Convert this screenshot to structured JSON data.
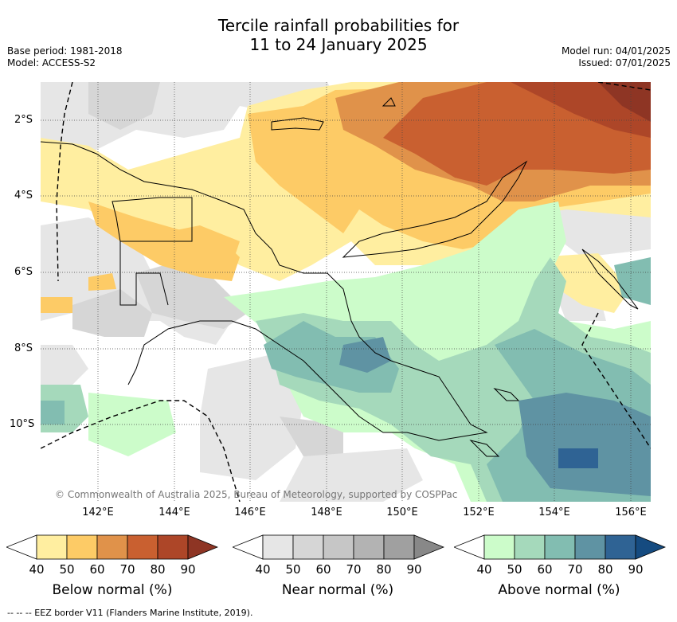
{
  "title_line1": "Tercile rainfall probabilities for",
  "title_line2": "11 to 24 January 2025",
  "meta": {
    "base_period": "Base period: 1981-2018",
    "model": "Model: ACCESS-S2",
    "model_run": "Model run: 04/01/2025",
    "issued": "Issued: 07/01/2025"
  },
  "map": {
    "lat_ticks": [
      "2°S",
      "4°S",
      "6°S",
      "8°S",
      "10°S"
    ],
    "lon_ticks": [
      "142°E",
      "144°E",
      "146°E",
      "148°E",
      "150°E",
      "152°E",
      "154°E",
      "156°E"
    ],
    "copyright": "© Commonwealth of Australia 2025, Bureau of Meteorology, supported by COSPPac"
  },
  "colorbars": [
    {
      "label": "Below normal (%)",
      "ticks": [
        "40",
        "50",
        "60",
        "70",
        "80",
        "90"
      ],
      "colors": [
        "#ffeea0",
        "#fdcb66",
        "#e0924a",
        "#c96030",
        "#ad4628",
        "#8e3524"
      ]
    },
    {
      "label": "Near normal (%)",
      "ticks": [
        "40",
        "50",
        "60",
        "70",
        "80",
        "90"
      ],
      "colors": [
        "#e6e6e6",
        "#d6d6d6",
        "#c6c6c6",
        "#b3b3b3",
        "#a0a0a0",
        "#888888"
      ]
    },
    {
      "label": "Above normal (%)",
      "ticks": [
        "40",
        "50",
        "60",
        "70",
        "80",
        "90"
      ],
      "colors": [
        "#ccfcca",
        "#a5d9bb",
        "#82bdb1",
        "#5f93a3",
        "#2f6394",
        "#154b80"
      ]
    }
  ],
  "footnote": "--  --  -- EEZ border V11 (Flanders Marine Institute, 2019)."
}
